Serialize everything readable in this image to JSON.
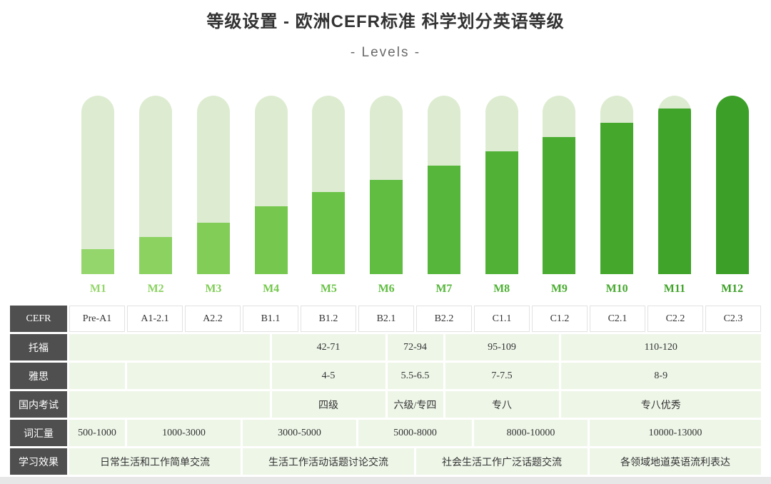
{
  "header": {
    "title": "等级设置 - 欧洲CEFR标准 科学划分英语等级",
    "subtitle": "- Levels -"
  },
  "chart_data": {
    "type": "bar",
    "title": "Levels",
    "categories": [
      "M1",
      "M2",
      "M3",
      "M4",
      "M5",
      "M6",
      "M7",
      "M8",
      "M9",
      "M10",
      "M11",
      "M12"
    ],
    "values": [
      14,
      21,
      29,
      38,
      46,
      53,
      61,
      69,
      77,
      85,
      93,
      100
    ],
    "value_unit": "fill-percent-of-track",
    "ylim": [
      0,
      100
    ],
    "xlabel": "",
    "ylabel": "",
    "grid": false,
    "legend": false,
    "track_color": "#ddecd1",
    "bar_colors": [
      "#95d66c",
      "#8bd261",
      "#81cd57",
      "#75c84d",
      "#6ac347",
      "#60bd41",
      "#56b63b",
      "#50b136",
      "#4aac31",
      "#45a82d",
      "#40a32a",
      "#3c9f27"
    ]
  },
  "table": {
    "grid_units": 24,
    "rows": [
      {
        "id": "cefr",
        "header": "CEFR",
        "variant": "plain",
        "cells": [
          {
            "label": "Pre-A1",
            "span": 2
          },
          {
            "label": "A1-2.1",
            "span": 2
          },
          {
            "label": "A2.2",
            "span": 2
          },
          {
            "label": "B1.1",
            "span": 2
          },
          {
            "label": "B1.2",
            "span": 2
          },
          {
            "label": "B2.1",
            "span": 2
          },
          {
            "label": "B2.2",
            "span": 2
          },
          {
            "label": "C1.1",
            "span": 2
          },
          {
            "label": "C1.2",
            "span": 2
          },
          {
            "label": "C2.1",
            "span": 2
          },
          {
            "label": "C2.2",
            "span": 2
          },
          {
            "label": "C2.3",
            "span": 2
          }
        ]
      },
      {
        "id": "toefl",
        "header": "托福",
        "variant": "green",
        "cells": [
          {
            "label": "",
            "span": 7
          },
          {
            "label": "42-71",
            "span": 4
          },
          {
            "label": "72-94",
            "span": 2
          },
          {
            "label": "95-109",
            "span": 4
          },
          {
            "label": "110-120",
            "span": 7
          }
        ]
      },
      {
        "id": "ielts",
        "header": "雅思",
        "variant": "green",
        "cells": [
          {
            "label": "",
            "span": 2
          },
          {
            "label": "",
            "span": 5
          },
          {
            "label": "4-5",
            "span": 4
          },
          {
            "label": "5.5-6.5",
            "span": 2
          },
          {
            "label": "7-7.5",
            "span": 4
          },
          {
            "label": "8-9",
            "span": 7
          }
        ]
      },
      {
        "id": "domestic-exam",
        "header": "国内考试",
        "variant": "green",
        "cells": [
          {
            "label": "",
            "span": 7
          },
          {
            "label": "四级",
            "span": 4
          },
          {
            "label": "六级/专四",
            "span": 2
          },
          {
            "label": "专八",
            "span": 4
          },
          {
            "label": "专八优秀",
            "span": 7
          }
        ]
      },
      {
        "id": "vocabulary",
        "header": "词汇量",
        "variant": "green",
        "cells": [
          {
            "label": "500-1000",
            "span": 2
          },
          {
            "label": "1000-3000",
            "span": 4
          },
          {
            "label": "3000-5000",
            "span": 4
          },
          {
            "label": "5000-8000",
            "span": 4
          },
          {
            "label": "8000-10000",
            "span": 4
          },
          {
            "label": "10000-13000",
            "span": 6
          }
        ]
      },
      {
        "id": "learning-outcome",
        "header": "学习效果",
        "variant": "green",
        "cells": [
          {
            "label": "日常生活和工作简单交流",
            "span": 6
          },
          {
            "label": "生活工作活动话题讨论交流",
            "span": 6
          },
          {
            "label": "社会生活工作广泛话题交流",
            "span": 6
          },
          {
            "label": "各领域地道英语流利表达",
            "span": 6
          }
        ]
      }
    ]
  },
  "colors": {
    "header_bg": "#4f4f4f",
    "header_text": "#ffffff",
    "green_cell_bg": "#eef6e8",
    "page_bg": "#ffffff",
    "bottom_strip": "#e7e7e7"
  }
}
